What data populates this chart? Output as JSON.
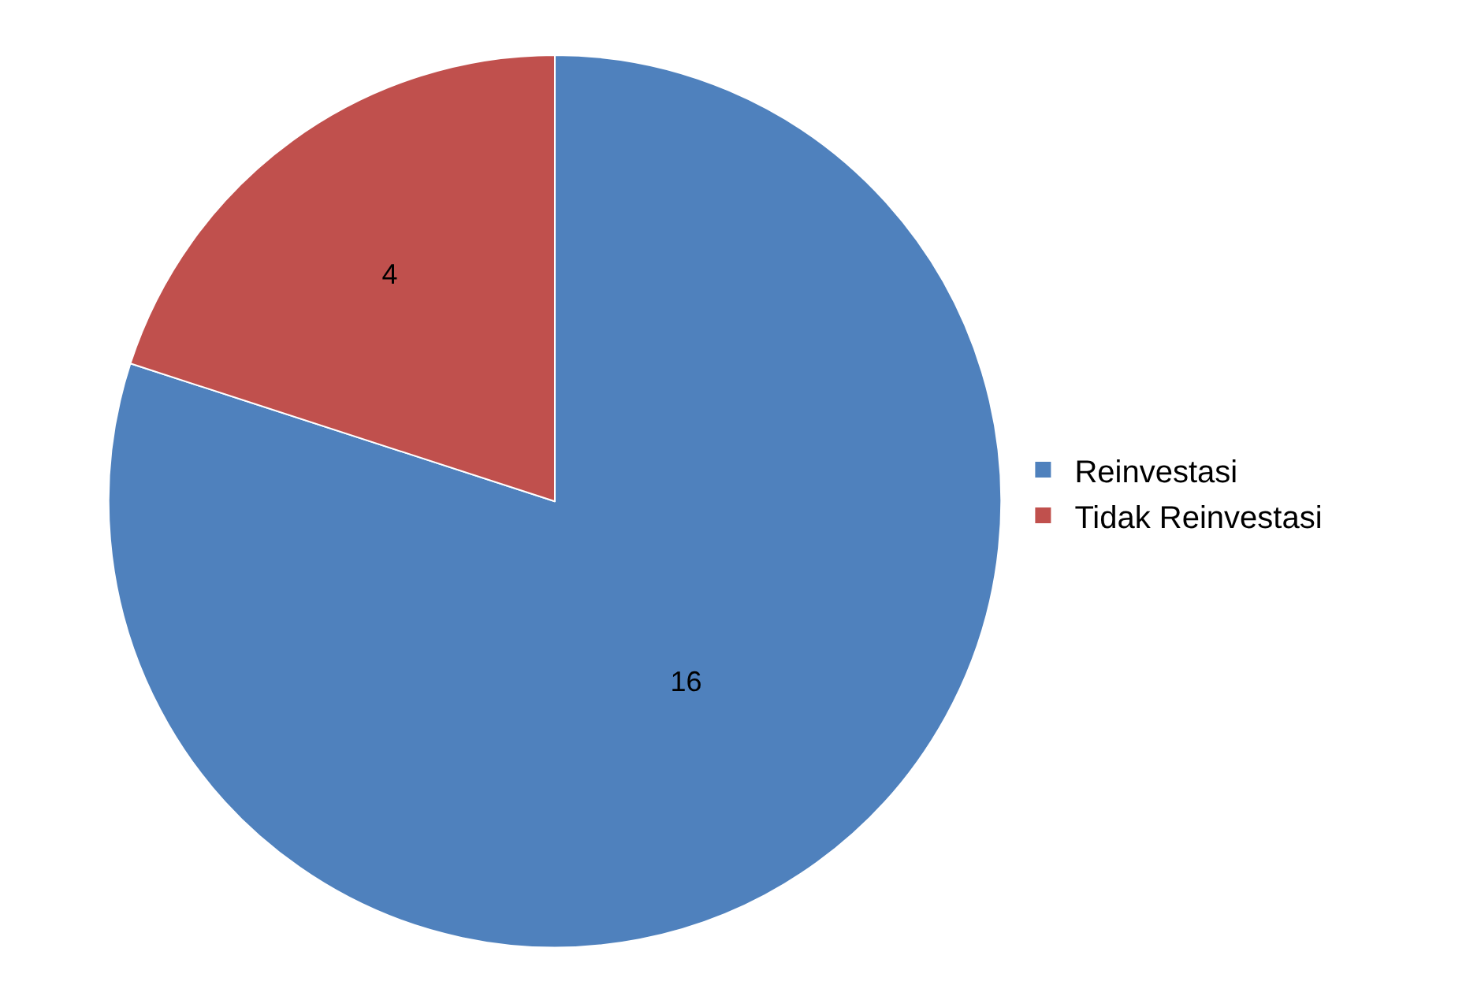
{
  "chart_data": {
    "type": "pie",
    "categories": [
      "Reinvestasi",
      "Tidak Reinvestasi"
    ],
    "values": [
      16,
      4
    ],
    "colors": [
      "#4f81bd",
      "#c0504d"
    ],
    "data_labels": true,
    "legend": "right"
  }
}
